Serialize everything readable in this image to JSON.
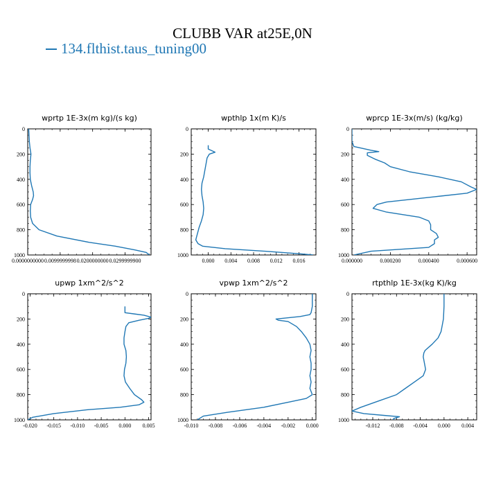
{
  "title": "CLUBB VAR at25E,0N",
  "legend": "134.flthist.taus_tuning00",
  "colors": {
    "series": "#1f77b4"
  },
  "chart_data": [
    {
      "type": "line",
      "title": "wprtp  1E-3x(m kg)/(s kg)",
      "xlim": [
        0,
        0.038
      ],
      "ylim": [
        0,
        1000
      ],
      "y_inverted": true,
      "xticks": [
        0,
        0.01,
        0.02,
        0.03
      ],
      "xticklabels": [
        "0.0000000000",
        "0.0099999998",
        "0.0200000000",
        "0.0299999900"
      ],
      "yticks": [
        0,
        200,
        400,
        600,
        800,
        1000
      ],
      "series": [
        {
          "y": [
            0,
            100,
            150,
            200,
            250,
            300,
            350,
            400,
            450,
            500,
            530,
            560,
            600,
            650,
            700,
            750,
            800,
            850,
            900,
            930,
            960,
            980,
            1000
          ],
          "x": [
            0.0003,
            0.0005,
            0.0007,
            0.001,
            0.0008,
            0.0007,
            0.0007,
            0.0008,
            0.0012,
            0.0017,
            0.0018,
            0.0015,
            0.0009,
            0.0008,
            0.0009,
            0.0015,
            0.0035,
            0.009,
            0.019,
            0.027,
            0.033,
            0.0365,
            0.0375
          ]
        }
      ]
    },
    {
      "type": "line",
      "title": "wpthlp  1x(m K)/s",
      "xlim": [
        -0.003,
        0.019
      ],
      "ylim": [
        0,
        1000
      ],
      "y_inverted": true,
      "xticks": [
        0,
        0.004,
        0.008,
        0.012,
        0.016
      ],
      "xticklabels": [
        "0.000",
        "0.004",
        "0.008",
        "0.012",
        "0.016"
      ],
      "yticks": [
        0,
        200,
        400,
        600,
        800,
        1000
      ],
      "series": [
        {
          "y": [
            130,
            160,
            185,
            200,
            230,
            280,
            330,
            380,
            430,
            480,
            530,
            580,
            630,
            680,
            730,
            780,
            830,
            880,
            910,
            930,
            950,
            970,
            990,
            1000
          ],
          "x": [
            0,
            0,
            0.0012,
            0.0002,
            -0.0002,
            -0.0004,
            -0.0006,
            -0.0008,
            -0.0011,
            -0.0012,
            -0.0011,
            -0.0009,
            -0.0008,
            -0.0009,
            -0.0012,
            -0.0016,
            -0.0019,
            -0.0022,
            -0.0018,
            -0.001,
            0.003,
            0.01,
            0.016,
            0.0185
          ]
        }
      ]
    },
    {
      "type": "line",
      "title": "wprcp  1E-3x(m/s) (kg/kg)",
      "xlim": [
        0,
        0.00065
      ],
      "ylim": [
        0,
        1000
      ],
      "y_inverted": true,
      "xticks": [
        0,
        0.0002,
        0.0004,
        0.0006
      ],
      "xticklabels": [
        "0.000000",
        "0.000200",
        "0.000400",
        "0.000600"
      ],
      "yticks": [
        0,
        200,
        400,
        600,
        800,
        1000
      ],
      "series": [
        {
          "y": [
            0,
            100,
            140,
            170,
            180,
            190,
            210,
            240,
            270,
            300,
            340,
            380,
            420,
            460,
            480,
            510,
            540,
            580,
            600,
            630,
            660,
            700,
            730,
            760,
            800,
            830,
            860,
            880,
            910,
            940,
            970,
            1000
          ],
          "x": [
            0,
            0,
            1e-05,
            0.0001,
            0.00014,
            8e-05,
            8e-05,
            0.00012,
            0.00017,
            0.0002,
            0.0003,
            0.00045,
            0.00057,
            0.00062,
            0.00065,
            0.0006,
            0.00042,
            0.00018,
            0.00013,
            0.00011,
            0.00018,
            0.00035,
            0.0004,
            0.00041,
            0.00041,
            0.00044,
            0.00045,
            0.00043,
            0.00043,
            0.0004,
            0.0001,
            1e-05
          ]
        }
      ]
    },
    {
      "type": "line",
      "title": "upwp  1xm^2/s^2",
      "xlim": [
        -0.0205,
        0.0055
      ],
      "ylim": [
        0,
        1000
      ],
      "y_inverted": true,
      "xticks": [
        -0.02,
        -0.015,
        -0.01,
        -0.005,
        0,
        0.005
      ],
      "xticklabels": [
        "-0.020",
        "-0.015",
        "-0.010",
        "-0.005",
        "0.000",
        "0.005"
      ],
      "yticks": [
        0,
        200,
        400,
        600,
        800,
        1000
      ],
      "series": [
        {
          "y": [
            100,
            150,
            160,
            170,
            185,
            195,
            210,
            230,
            260,
            300,
            350,
            400,
            450,
            500,
            550,
            600,
            650,
            700,
            750,
            800,
            840,
            860,
            880,
            900,
            920,
            950,
            980,
            1000
          ],
          "x": [
            0,
            0,
            0.002,
            0.004,
            0.0055,
            0.005,
            0.003,
            0.0008,
            0.0002,
            0,
            -0.0002,
            -0.0002,
            0.0002,
            0.0003,
            0.0002,
            -0.0001,
            -0.0002,
            0.0001,
            0.001,
            0.002,
            0.0035,
            0.004,
            0.003,
            -0.001,
            -0.008,
            -0.015,
            -0.0195,
            -0.0205
          ]
        }
      ]
    },
    {
      "type": "line",
      "title": "vpwp  1xm^2/s^2",
      "xlim": [
        -0.01,
        0.0003
      ],
      "ylim": [
        0,
        1000
      ],
      "y_inverted": true,
      "xticks": [
        -0.01,
        -0.008,
        -0.006,
        -0.004,
        -0.002,
        0
      ],
      "xticklabels": [
        "-0.010",
        "-0.008",
        "-0.006",
        "-0.004",
        "-0.002",
        "0.000"
      ],
      "yticks": [
        0,
        200,
        400,
        600,
        800,
        1000
      ],
      "series": [
        {
          "y": [
            0,
            100,
            150,
            165,
            180,
            200,
            210,
            220,
            260,
            300,
            350,
            400,
            450,
            500,
            550,
            600,
            650,
            700,
            750,
            800,
            830,
            860,
            900,
            940,
            970,
            1000
          ],
          "x": [
            0,
            0,
            -0.0001,
            -0.0002,
            -0.001,
            -0.003,
            -0.0028,
            -0.002,
            -0.0013,
            -0.0009,
            -0.0005,
            -0.0002,
            -0.0001,
            -0.0002,
            -0.0001,
            -0.0001,
            -0.0002,
            -0.0001,
            -0.0002,
            0,
            -0.0005,
            -0.002,
            -0.004,
            -0.007,
            -0.009,
            -0.0095
          ]
        }
      ]
    },
    {
      "type": "line",
      "title": "rtpthlp  1E-3x(kg K)/kg",
      "xlim": [
        -0.0155,
        0.0055
      ],
      "ylim": [
        0,
        1000
      ],
      "y_inverted": true,
      "xticks": [
        -0.012,
        -0.008,
        -0.004,
        0,
        0.004
      ],
      "xticklabels": [
        "-0.012",
        "-0.008",
        "-0.004",
        "0.000",
        "0.004"
      ],
      "yticks": [
        0,
        200,
        400,
        600,
        800,
        1000
      ],
      "series": [
        {
          "y": [
            0,
            100,
            200,
            300,
            350,
            400,
            450,
            470,
            500,
            550,
            600,
            650,
            700,
            750,
            800,
            850,
            900,
            930,
            950,
            965,
            975,
            990,
            1000
          ],
          "x": [
            0,
            0,
            -0.0001,
            -0.0005,
            -0.001,
            -0.002,
            -0.0032,
            -0.0034,
            -0.0035,
            -0.0033,
            -0.0031,
            -0.0035,
            -0.005,
            -0.0065,
            -0.008,
            -0.011,
            -0.014,
            -0.0155,
            -0.0135,
            -0.01,
            -0.0075,
            -0.0085,
            -0.0085
          ]
        }
      ]
    }
  ]
}
